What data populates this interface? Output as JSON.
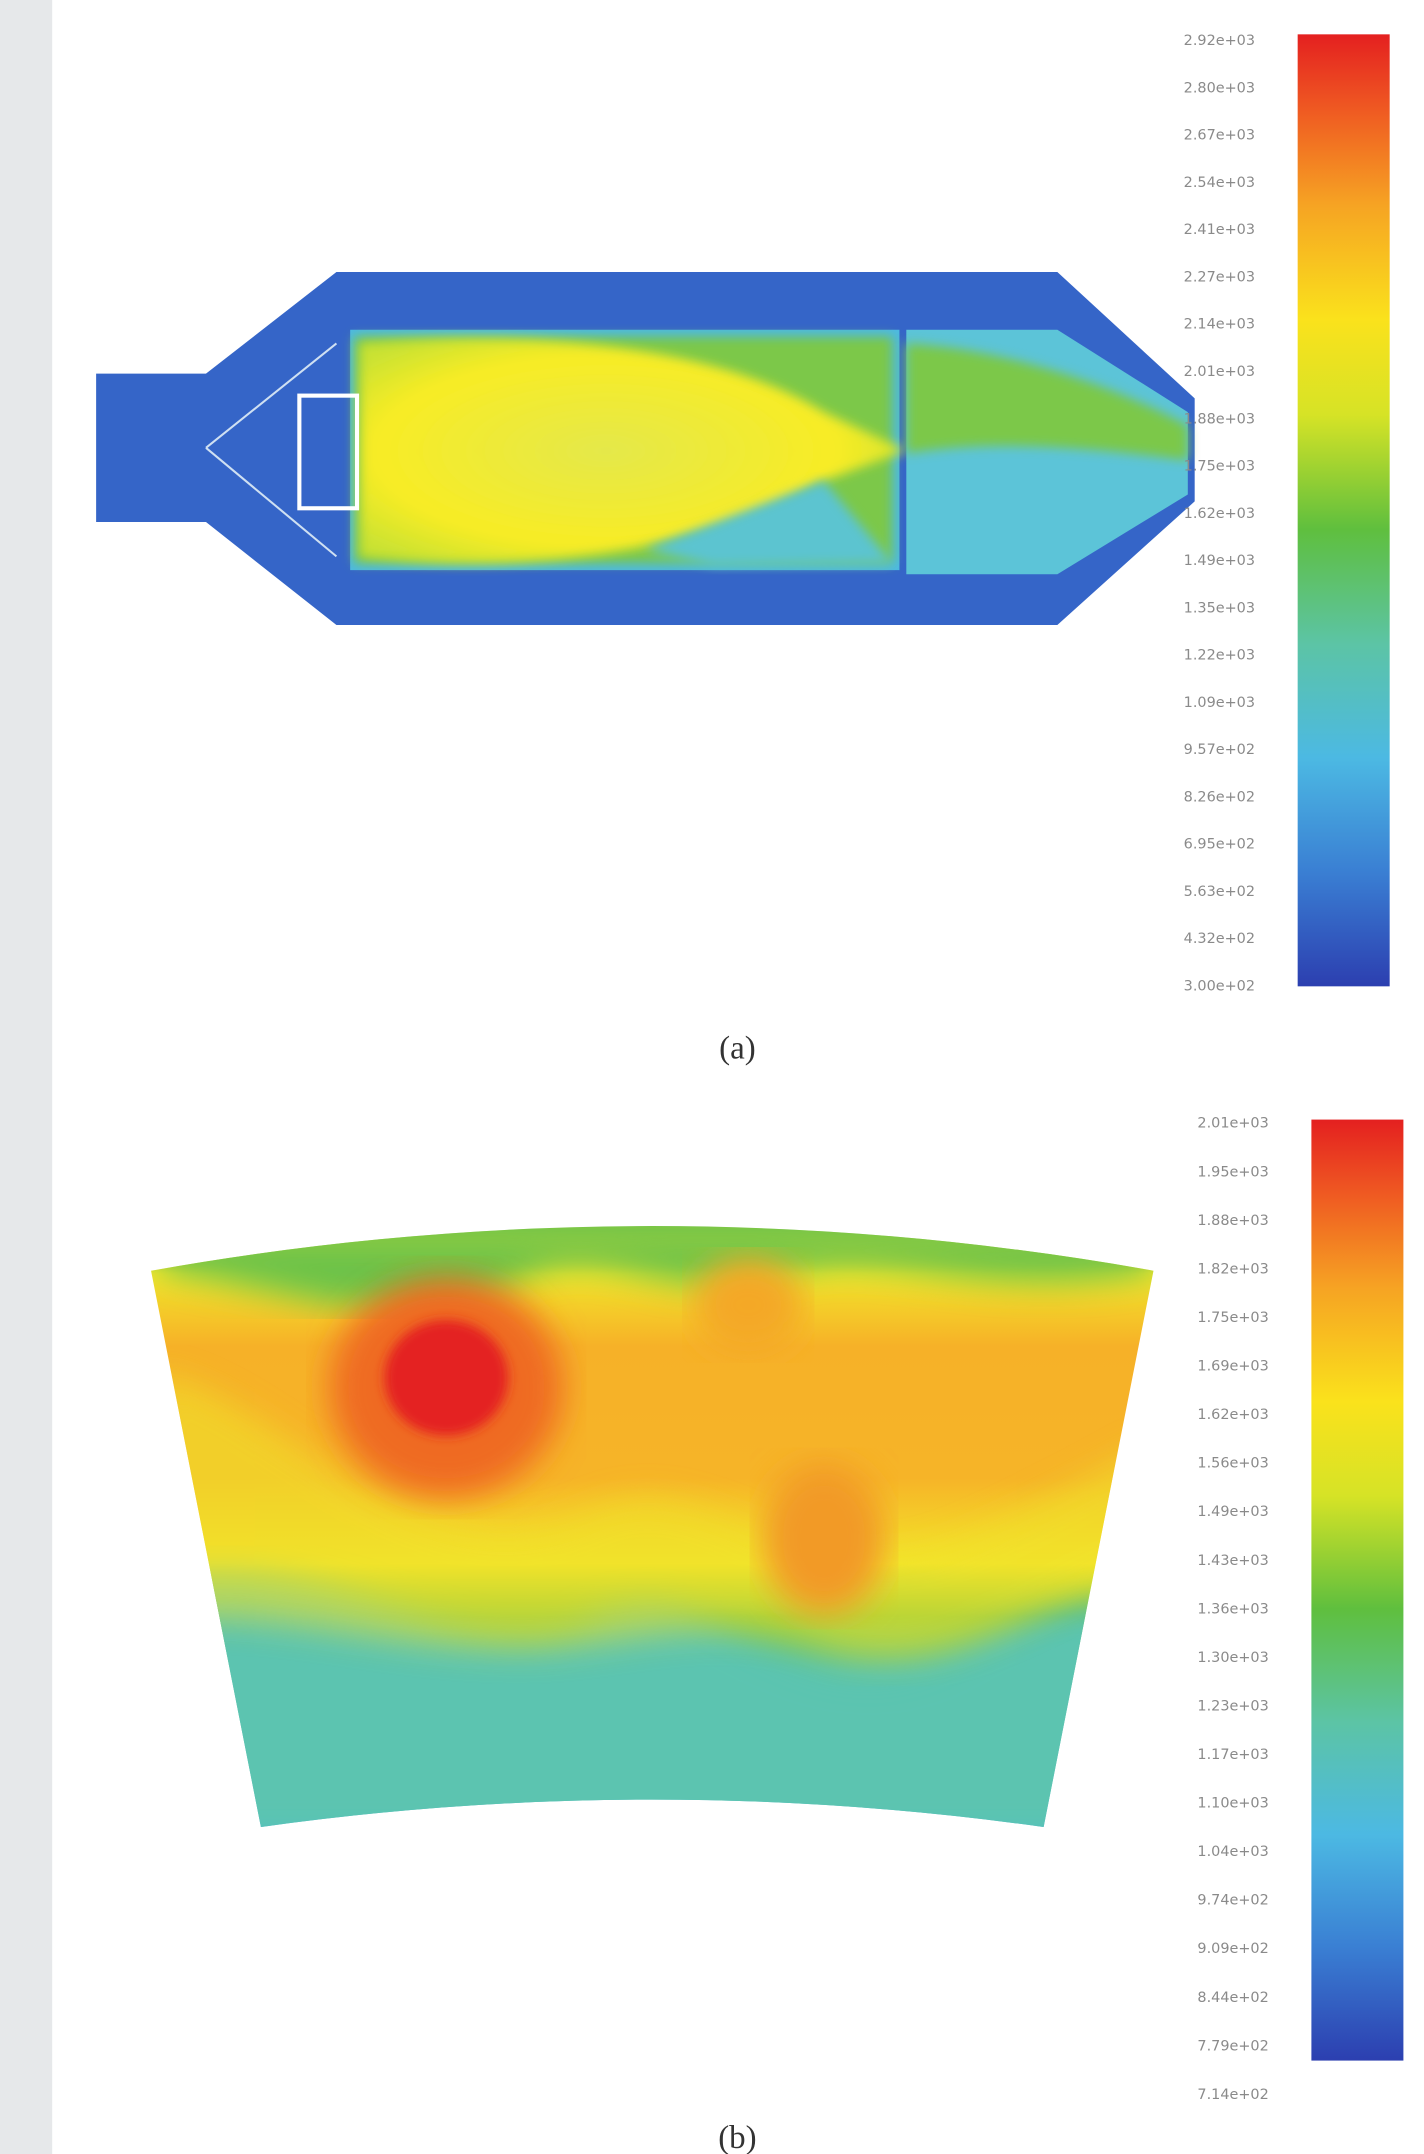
{
  "figure": {
    "panels": [
      {
        "caption": "(a)",
        "colorbar_labels": [
          "2.92e+03",
          "2.80e+03",
          "2.67e+03",
          "2.54e+03",
          "2.41e+03",
          "2.27e+03",
          "2.14e+03",
          "2.01e+03",
          "1.88e+03",
          "1.75e+03",
          "1.62e+03",
          "1.49e+03",
          "1.35e+03",
          "1.22e+03",
          "1.09e+03",
          "9.57e+02",
          "8.26e+02",
          "6.95e+02",
          "5.63e+02",
          "4.32e+02",
          "3.00e+02"
        ]
      },
      {
        "caption": "(b)",
        "colorbar_labels": [
          "2.01e+03",
          "1.95e+03",
          "1.88e+03",
          "1.82e+03",
          "1.75e+03",
          "1.69e+03",
          "1.62e+03",
          "1.56e+03",
          "1.49e+03",
          "1.43e+03",
          "1.36e+03",
          "1.30e+03",
          "1.23e+03",
          "1.17e+03",
          "1.10e+03",
          "1.04e+03",
          "9.74e+02",
          "9.09e+02",
          "8.44e+02",
          "7.79e+02",
          "7.14e+02"
        ]
      }
    ]
  }
}
